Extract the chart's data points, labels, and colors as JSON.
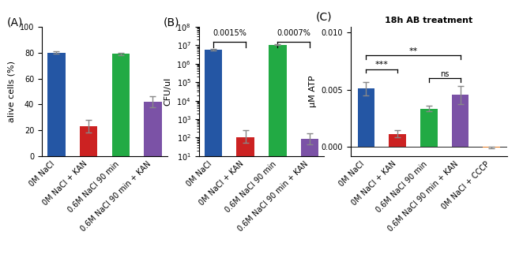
{
  "panel_A": {
    "label": "(A)",
    "ylabel": "alive cells (%)",
    "ylim": [
      0,
      100
    ],
    "yticks": [
      0,
      20,
      40,
      60,
      80,
      100
    ],
    "categories": [
      "0M NaCl",
      "0M NaCl + KAN",
      "0.6M NaCl 90 min",
      "0.6M NaCl 90 min + KAN"
    ],
    "values": [
      80,
      23,
      79,
      42
    ],
    "errors": [
      1,
      5,
      1,
      4
    ],
    "colors": [
      "#2456a4",
      "#cc2222",
      "#22aa44",
      "#7b52a6"
    ]
  },
  "panel_B": {
    "label": "(B)",
    "ylabel": "CFU/ul",
    "ylim_log": [
      10,
      100000000
    ],
    "categories": [
      "0M NaCl",
      "0M NaCl + KAN",
      "0.6M NaCl 90 min",
      "0.6M NaCl 90 min + KAN"
    ],
    "values": [
      6000000,
      100,
      11000000,
      85
    ],
    "errors_low": [
      500000,
      50,
      800000,
      40
    ],
    "errors_high": [
      500000,
      150,
      800000,
      80
    ],
    "colors": [
      "#2456a4",
      "#cc2222",
      "#22aa44",
      "#7b52a6"
    ],
    "sig1_text": "0.0015%",
    "sig2_text": "0.0007%"
  },
  "panel_C": {
    "label": "(C)",
    "title": "18h AB treatment",
    "ylabel": "μM ATP",
    "ylim": [
      -0.0008,
      0.0105
    ],
    "yticks": [
      0.0,
      0.005,
      0.01
    ],
    "yticklabels": [
      "0.000",
      "0.005",
      "0.010"
    ],
    "categories": [
      "0M NaCl",
      "0M NaCl + KAN",
      "0.6M NaCl 90 min",
      "0.6M NaCl 90 min + KAN",
      "0M NaCl + CCCP"
    ],
    "values": [
      0.0051,
      0.00115,
      0.00335,
      0.00455,
      -5e-05
    ],
    "errors": [
      0.0006,
      0.0003,
      0.00025,
      0.0008,
      8e-05
    ],
    "colors": [
      "#2456a4",
      "#cc2222",
      "#22aa44",
      "#7b52a6",
      "#e07820"
    ]
  }
}
